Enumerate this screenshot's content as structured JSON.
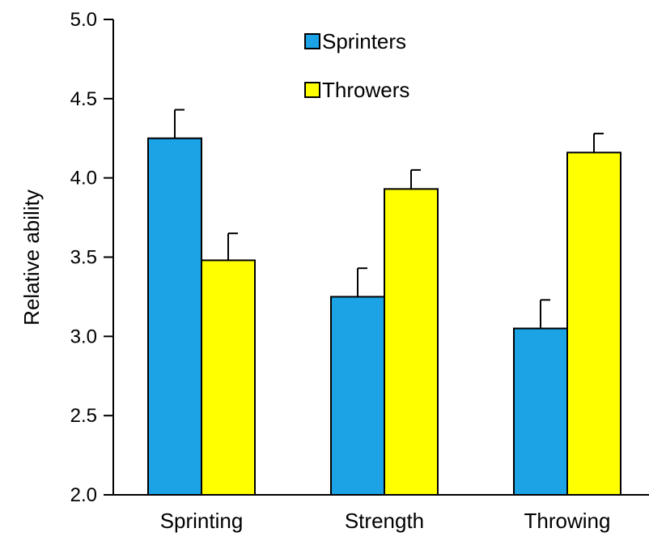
{
  "chart_data": {
    "type": "bar",
    "title": "",
    "xlabel": "",
    "ylabel": "Relative ability",
    "ylim": [
      2.0,
      5.0
    ],
    "yticks": [
      "2.0",
      "2.5",
      "3.0",
      "3.5",
      "4.0",
      "4.5",
      "5.0"
    ],
    "ytick_values": [
      2.0,
      2.5,
      3.0,
      3.5,
      4.0,
      4.5,
      5.0
    ],
    "categories": [
      "Sprinting",
      "Strength",
      "Throwing"
    ],
    "series": [
      {
        "name": "Sprinters",
        "color": "#1ba3e6",
        "values": [
          4.25,
          3.25,
          3.05
        ],
        "errors": [
          0.18,
          0.18,
          0.18
        ]
      },
      {
        "name": "Throwers",
        "color": "#ffff00",
        "values": [
          3.48,
          3.93,
          4.16
        ],
        "errors": [
          0.17,
          0.12,
          0.12
        ]
      }
    ],
    "grid": false,
    "legend": "top-center",
    "error_bars": "upper-only"
  }
}
